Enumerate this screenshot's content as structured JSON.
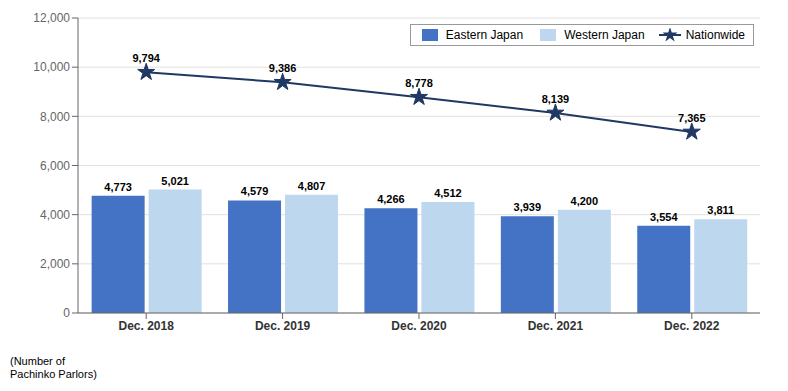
{
  "chart_data": {
    "type": "bar",
    "categories": [
      "Dec. 2018",
      "Dec. 2019",
      "Dec. 2020",
      "Dec. 2021",
      "Dec. 2022"
    ],
    "series": [
      {
        "name": "Eastern Japan",
        "type": "bar",
        "color": "#4472C4",
        "values": [
          4773,
          4579,
          4266,
          3939,
          3554
        ],
        "value_labels": [
          "4,773",
          "4,579",
          "4,266",
          "3,939",
          "3,554"
        ]
      },
      {
        "name": "Western Japan",
        "type": "bar",
        "color": "#BDD7EE",
        "values": [
          5021,
          4807,
          4512,
          4200,
          3811
        ],
        "value_labels": [
          "5,021",
          "4,807",
          "4,512",
          "4,200",
          "3,811"
        ]
      },
      {
        "name": "Nationwide",
        "type": "line",
        "color": "#1F3864",
        "marker": "star",
        "values": [
          9794,
          9386,
          8778,
          8139,
          7365
        ],
        "value_labels": [
          "9,794",
          "9,386",
          "8,778",
          "8,139",
          "7,365"
        ]
      }
    ],
    "ylabel": "(Number of\nPachinko Parlors)",
    "ylim": [
      0,
      12000
    ],
    "yticks": [
      0,
      {
        "value": 2000,
        "label": "2,000"
      },
      {
        "value": 4000,
        "label": "4,000"
      },
      {
        "value": 6000,
        "label": "6,000"
      },
      {
        "value": 8000,
        "label": "8,000"
      },
      {
        "value": 10000,
        "label": "10,000"
      },
      {
        "value": 12000,
        "label": "12,000"
      }
    ],
    "grid": true,
    "legend": "upper right",
    "data_labels": true
  }
}
